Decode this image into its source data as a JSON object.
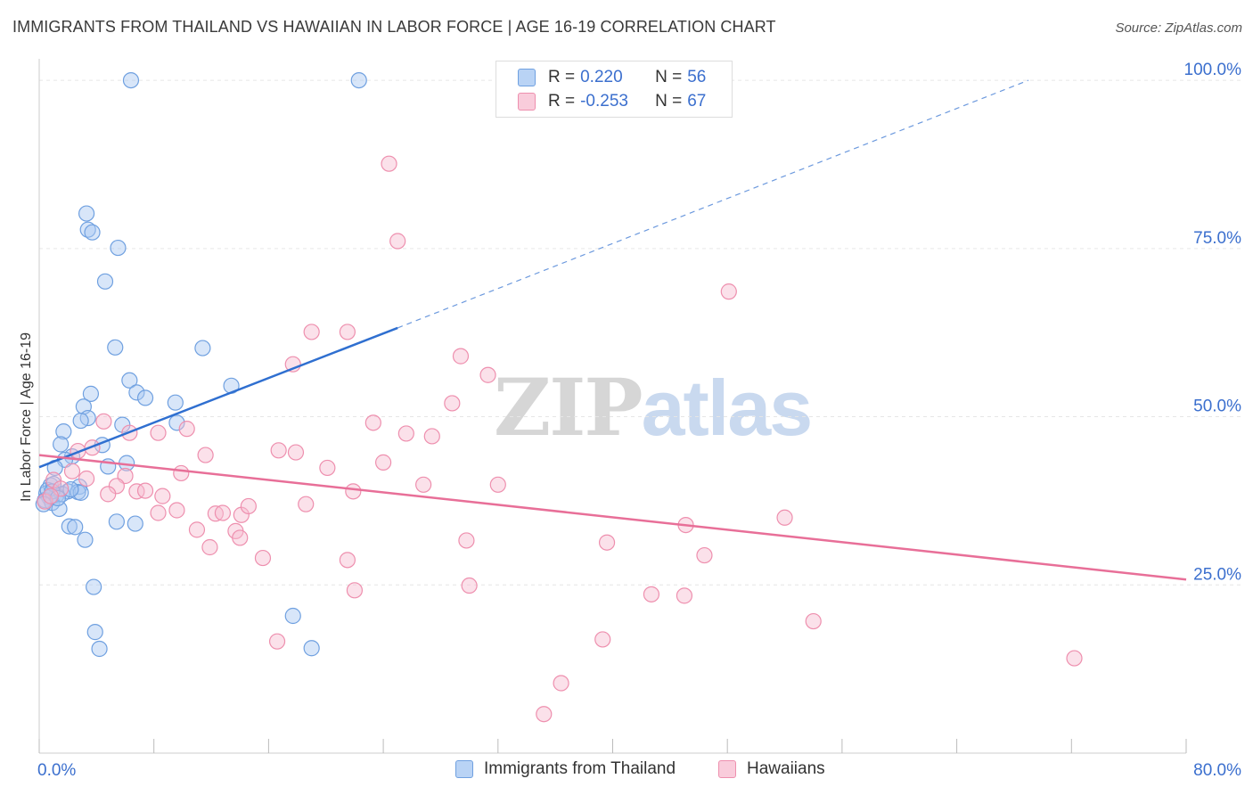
{
  "header": {
    "title": "IMMIGRANTS FROM THAILAND VS HAWAIIAN IN LABOR FORCE | AGE 16-19 CORRELATION CHART",
    "source": "Source: ZipAtlas.com"
  },
  "legend": {
    "rows": [
      {
        "r_label": "R =",
        "r_value": "0.220",
        "n_label": "N =",
        "n_value": "56"
      },
      {
        "r_label": "R =",
        "r_value": "-0.253",
        "n_label": "N =",
        "n_value": "67"
      }
    ]
  },
  "watermark": {
    "zip": "ZIP",
    "atlas": "atlas"
  },
  "colors": {
    "blue_fill": "#a9c8f2",
    "blue_stroke": "#6fa0e0",
    "blue_line": "#2f6fd0",
    "pink_fill": "#f6bcd0",
    "pink_stroke": "#ee8fae",
    "pink_line": "#e86f98",
    "axis_text": "#3b6fce",
    "grid": "#e6e6e6"
  },
  "chart_data": {
    "type": "scatter",
    "title": "IMMIGRANTS FROM THAILAND VS HAWAIIAN IN LABOR FORCE | AGE 16-19 CORRELATION CHART",
    "xlabel": "",
    "ylabel": "In Labor Force | Age 16-19",
    "xlim": [
      0,
      80
    ],
    "ylim": [
      0,
      102
    ],
    "x_tick_labels": [
      "0.0%",
      "80.0%"
    ],
    "y_ticks": [
      25,
      50,
      75,
      100
    ],
    "y_tick_labels": [
      "25.0%",
      "50.0%",
      "75.0%",
      "100.0%"
    ],
    "grid": true,
    "legend_position": "top-center",
    "series": [
      {
        "name": "Immigrants from Thailand",
        "color": "#a9c8f2",
        "R": 0.22,
        "N": 56,
        "trend": {
          "x0": 0,
          "y0": 42.5,
          "x1": 25,
          "y1": 63.2,
          "dash_to_x": 69,
          "dash_to_y": 100
        },
        "points": [
          [
            6.4,
            100
          ],
          [
            22.3,
            100
          ],
          [
            3.3,
            80.2
          ],
          [
            3.4,
            77.8
          ],
          [
            3.7,
            77.4
          ],
          [
            5.5,
            75.1
          ],
          [
            4.6,
            70.1
          ],
          [
            5.3,
            60.3
          ],
          [
            11.4,
            60.2
          ],
          [
            6.3,
            55.4
          ],
          [
            13.4,
            54.6
          ],
          [
            6.8,
            53.6
          ],
          [
            3.6,
            53.4
          ],
          [
            7.4,
            52.8
          ],
          [
            3.1,
            51.5
          ],
          [
            9.5,
            52.1
          ],
          [
            3.4,
            49.8
          ],
          [
            2.9,
            49.4
          ],
          [
            9.6,
            49.1
          ],
          [
            5.8,
            48.8
          ],
          [
            1.7,
            47.8
          ],
          [
            1.5,
            45.9
          ],
          [
            4.4,
            45.8
          ],
          [
            2.3,
            44.1
          ],
          [
            1.8,
            43.6
          ],
          [
            6.1,
            43.1
          ],
          [
            4.8,
            42.6
          ],
          [
            1.1,
            42.4
          ],
          [
            0.8,
            39.8
          ],
          [
            2.8,
            39.6
          ],
          [
            2.0,
            38.9
          ],
          [
            2.7,
            38.8
          ],
          [
            2.9,
            38.7
          ],
          [
            0.5,
            38.6
          ],
          [
            1.2,
            38.3
          ],
          [
            0.7,
            38.0
          ],
          [
            0.4,
            37.6
          ],
          [
            0.9,
            37.2
          ],
          [
            1.4,
            36.3
          ],
          [
            5.4,
            34.4
          ],
          [
            6.7,
            34.1
          ],
          [
            2.1,
            33.7
          ],
          [
            2.5,
            33.6
          ],
          [
            3.2,
            31.7
          ],
          [
            3.8,
            24.7
          ],
          [
            17.7,
            20.4
          ],
          [
            3.9,
            18.0
          ],
          [
            4.2,
            15.5
          ],
          [
            19.0,
            15.6
          ],
          [
            0.6,
            39.1
          ],
          [
            1.0,
            40.0
          ],
          [
            0.3,
            37.0
          ],
          [
            1.6,
            38.5
          ],
          [
            2.2,
            39.2
          ],
          [
            0.9,
            38.9
          ],
          [
            1.3,
            37.9
          ]
        ]
      },
      {
        "name": "Hawaiians",
        "color": "#f6bcd0",
        "R": -0.253,
        "N": 67,
        "trend": {
          "x0": 0,
          "y0": 44.3,
          "x1": 80,
          "y1": 25.8
        },
        "points": [
          [
            24.4,
            87.6
          ],
          [
            25.0,
            76.1
          ],
          [
            48.1,
            68.6
          ],
          [
            19.0,
            62.6
          ],
          [
            21.5,
            62.6
          ],
          [
            29.4,
            59.0
          ],
          [
            17.7,
            57.8
          ],
          [
            31.3,
            56.2
          ],
          [
            28.8,
            52.0
          ],
          [
            23.3,
            49.1
          ],
          [
            4.5,
            49.3
          ],
          [
            6.3,
            47.6
          ],
          [
            25.6,
            47.5
          ],
          [
            27.4,
            47.1
          ],
          [
            8.3,
            47.6
          ],
          [
            10.3,
            48.2
          ],
          [
            3.7,
            45.4
          ],
          [
            2.7,
            44.9
          ],
          [
            16.7,
            45.0
          ],
          [
            17.9,
            44.7
          ],
          [
            11.6,
            44.3
          ],
          [
            24.0,
            43.2
          ],
          [
            20.1,
            42.4
          ],
          [
            2.3,
            41.9
          ],
          [
            6.0,
            41.2
          ],
          [
            9.9,
            41.6
          ],
          [
            3.3,
            40.8
          ],
          [
            5.4,
            39.7
          ],
          [
            26.8,
            39.9
          ],
          [
            32.0,
            39.9
          ],
          [
            21.9,
            38.9
          ],
          [
            6.8,
            38.9
          ],
          [
            7.4,
            39.0
          ],
          [
            4.8,
            38.5
          ],
          [
            8.6,
            38.2
          ],
          [
            9.6,
            36.1
          ],
          [
            8.3,
            35.7
          ],
          [
            12.3,
            35.6
          ],
          [
            12.8,
            35.7
          ],
          [
            14.1,
            35.4
          ],
          [
            14.6,
            36.7
          ],
          [
            18.6,
            37.0
          ],
          [
            52.0,
            35.0
          ],
          [
            45.1,
            33.9
          ],
          [
            11.0,
            33.2
          ],
          [
            13.7,
            33.0
          ],
          [
            14.0,
            32.0
          ],
          [
            29.8,
            31.6
          ],
          [
            39.6,
            31.3
          ],
          [
            11.9,
            30.6
          ],
          [
            46.4,
            29.4
          ],
          [
            15.6,
            29.0
          ],
          [
            21.5,
            28.7
          ],
          [
            30.0,
            24.9
          ],
          [
            22.0,
            24.2
          ],
          [
            42.7,
            23.6
          ],
          [
            45.0,
            23.4
          ],
          [
            54.0,
            19.6
          ],
          [
            16.6,
            16.6
          ],
          [
            39.3,
            16.9
          ],
          [
            72.2,
            14.1
          ],
          [
            36.4,
            10.4
          ],
          [
            35.2,
            5.8
          ],
          [
            1.0,
            40.6
          ],
          [
            0.4,
            37.4
          ],
          [
            1.5,
            39.3
          ],
          [
            0.8,
            38.2
          ]
        ]
      }
    ]
  }
}
